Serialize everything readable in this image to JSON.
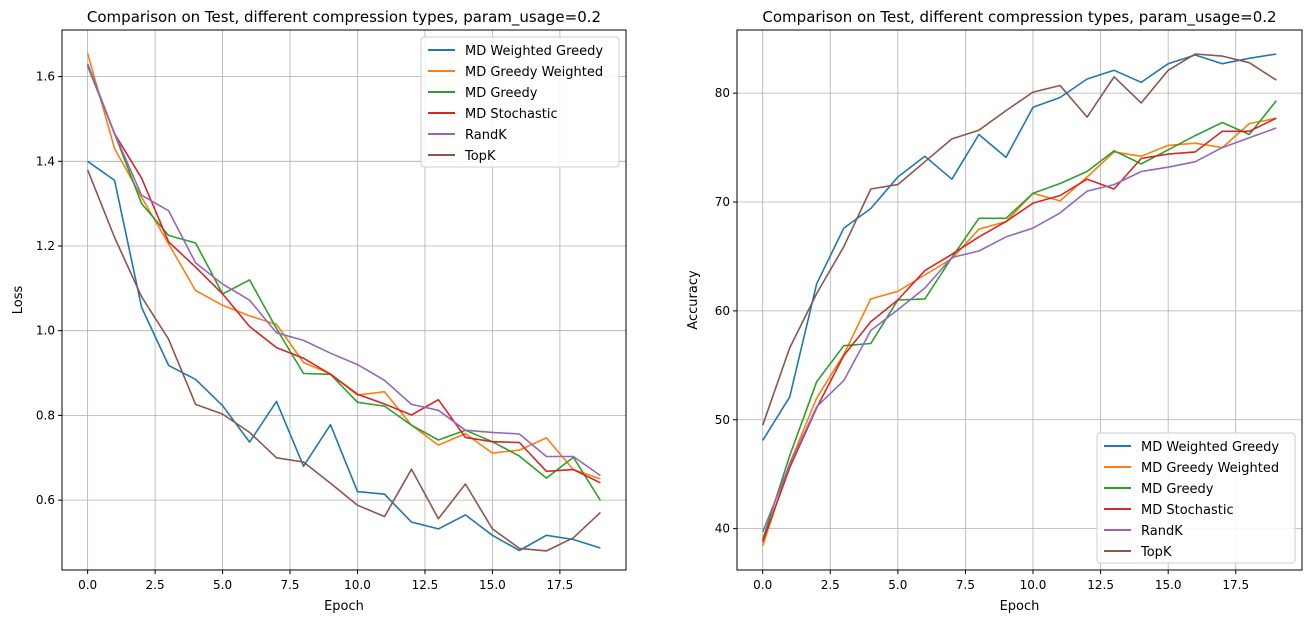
{
  "colors": {
    "MD Weighted Greedy": "#1f77b4",
    "MD Greedy Weighted": "#ff7f0e",
    "MD Greedy": "#2ca02c",
    "MD Stochastic": "#d62728",
    "RandK": "#9467bd",
    "TopK": "#8c564b"
  },
  "chart_data": [
    {
      "type": "line",
      "title": "Comparison on Test, different compression types, param_usage=0.2",
      "xlabel": "Epoch",
      "ylabel": "Loss",
      "xlim": [
        -0.95,
        19.95
      ],
      "ylim": [
        0.435,
        1.71
      ],
      "xticks": [
        0.0,
        2.5,
        5.0,
        7.5,
        10.0,
        12.5,
        15.0,
        17.5
      ],
      "xtick_labels": [
        "0.0",
        "2.5",
        "5.0",
        "7.5",
        "10.0",
        "12.5",
        "15.0",
        "17.5"
      ],
      "yticks": [
        0.6,
        0.8,
        1.0,
        1.2,
        1.4,
        1.6
      ],
      "ytick_labels": [
        "0.6",
        "0.8",
        "1.0",
        "1.2",
        "1.4",
        "1.6"
      ],
      "grid": true,
      "legend_position": "top-right",
      "x": [
        0,
        1,
        2,
        3,
        4,
        5,
        6,
        7,
        8,
        9,
        10,
        11,
        12,
        13,
        14,
        15,
        16,
        17,
        18,
        19
      ],
      "series": [
        {
          "name": "MD Weighted Greedy",
          "values": [
            1.4,
            1.355,
            1.055,
            0.918,
            0.885,
            0.823,
            0.737,
            0.833,
            0.68,
            0.778,
            0.62,
            0.614,
            0.548,
            0.532,
            0.565,
            0.517,
            0.481,
            0.517,
            0.507,
            0.487
          ]
        },
        {
          "name": "MD Greedy Weighted",
          "values": [
            1.655,
            1.43,
            1.315,
            1.205,
            1.095,
            1.06,
            1.035,
            1.015,
            0.925,
            0.898,
            0.848,
            0.856,
            0.777,
            0.73,
            0.757,
            0.711,
            0.718,
            0.747,
            0.672,
            0.65
          ]
        },
        {
          "name": "MD Greedy",
          "values": [
            1.625,
            1.465,
            1.3,
            1.225,
            1.207,
            1.087,
            1.12,
            1.005,
            0.899,
            0.897,
            0.831,
            0.822,
            0.777,
            0.742,
            0.765,
            0.738,
            0.704,
            0.652,
            0.701,
            0.599
          ]
        },
        {
          "name": "MD Stochastic",
          "values": [
            1.63,
            1.465,
            1.36,
            1.21,
            1.15,
            1.087,
            1.01,
            0.96,
            0.935,
            0.897,
            0.85,
            0.827,
            0.801,
            0.837,
            0.748,
            0.738,
            0.736,
            0.668,
            0.672,
            0.641
          ]
        },
        {
          "name": "RandK",
          "values": [
            1.63,
            1.465,
            1.32,
            1.283,
            1.16,
            1.11,
            1.072,
            0.995,
            0.977,
            0.947,
            0.92,
            0.883,
            0.826,
            0.812,
            0.765,
            0.76,
            0.756,
            0.703,
            0.703,
            0.658
          ]
        },
        {
          "name": "TopK",
          "values": [
            1.38,
            1.22,
            1.08,
            0.98,
            0.826,
            0.803,
            0.76,
            0.7,
            0.69,
            0.64,
            0.588,
            0.561,
            0.673,
            0.556,
            0.638,
            0.532,
            0.486,
            0.48,
            0.511,
            0.571
          ]
        }
      ]
    },
    {
      "type": "line",
      "title": "Comparison on Test, different compression types, param_usage=0.2",
      "xlabel": "Epoch",
      "ylabel": "Accuracy",
      "xlim": [
        -0.95,
        19.95
      ],
      "ylim": [
        36.2,
        85.8
      ],
      "xticks": [
        0.0,
        2.5,
        5.0,
        7.5,
        10.0,
        12.5,
        15.0,
        17.5
      ],
      "xtick_labels": [
        "0.0",
        "2.5",
        "5.0",
        "7.5",
        "10.0",
        "12.5",
        "15.0",
        "17.5"
      ],
      "yticks": [
        40,
        50,
        60,
        70,
        80
      ],
      "ytick_labels": [
        "40",
        "50",
        "60",
        "70",
        "80"
      ],
      "grid": true,
      "legend_position": "bottom-right",
      "x": [
        0,
        1,
        2,
        3,
        4,
        5,
        6,
        7,
        8,
        9,
        10,
        11,
        12,
        13,
        14,
        15,
        16,
        17,
        18,
        19
      ],
      "series": [
        {
          "name": "MD Weighted Greedy",
          "values": [
            48.1,
            52.1,
            62.5,
            67.6,
            69.4,
            72.3,
            74.2,
            72.1,
            76.2,
            74.1,
            78.7,
            79.6,
            81.3,
            82.1,
            81.0,
            82.7,
            83.5,
            82.7,
            83.2,
            83.6
          ]
        },
        {
          "name": "MD Greedy Weighted",
          "values": [
            38.4,
            46.0,
            52.0,
            56.0,
            61.1,
            61.8,
            63.3,
            64.8,
            67.5,
            68.2,
            70.8,
            70.1,
            72.3,
            74.6,
            74.2,
            75.2,
            75.4,
            75.0,
            77.2,
            77.7
          ]
        },
        {
          "name": "MD Greedy",
          "values": [
            39.0,
            46.7,
            53.5,
            56.8,
            57.0,
            61.0,
            61.1,
            64.9,
            68.5,
            68.5,
            70.8,
            71.7,
            72.8,
            74.7,
            73.5,
            74.8,
            76.1,
            77.3,
            76.2,
            79.3
          ]
        },
        {
          "name": "MD Stochastic",
          "values": [
            38.8,
            45.6,
            51.1,
            55.9,
            59.0,
            61.0,
            63.7,
            65.2,
            66.8,
            68.2,
            69.9,
            70.6,
            72.1,
            71.2,
            74.0,
            74.4,
            74.6,
            76.5,
            76.5,
            77.7
          ]
        },
        {
          "name": "RandK",
          "values": [
            39.7,
            45.9,
            51.2,
            53.6,
            58.2,
            60.1,
            62.1,
            64.9,
            65.5,
            66.8,
            67.6,
            69.0,
            71.0,
            71.6,
            72.8,
            73.2,
            73.7,
            75.0,
            75.9,
            76.8
          ]
        },
        {
          "name": "TopK",
          "values": [
            49.5,
            56.6,
            61.6,
            65.9,
            71.2,
            71.6,
            73.7,
            75.8,
            76.6,
            78.4,
            80.1,
            80.7,
            77.8,
            81.5,
            79.1,
            82.1,
            83.6,
            83.4,
            82.8,
            81.2
          ]
        }
      ]
    }
  ]
}
